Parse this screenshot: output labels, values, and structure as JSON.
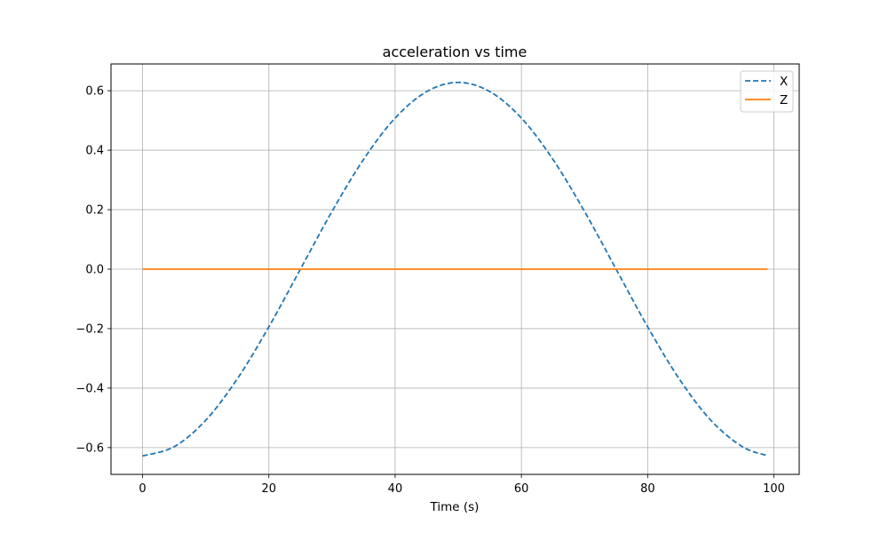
{
  "chart_data": {
    "type": "line",
    "title": "acceleration vs time",
    "xlabel": "Time (s)",
    "ylabel": "",
    "xlim": [
      -5,
      104
    ],
    "ylim": [
      -0.69,
      0.69
    ],
    "xticks": [
      0,
      20,
      40,
      60,
      80,
      100
    ],
    "xtick_labels": [
      "0",
      "20",
      "40",
      "60",
      "80",
      "100"
    ],
    "yticks": [
      -0.6,
      -0.4,
      -0.2,
      0.0,
      0.2,
      0.4,
      0.6
    ],
    "ytick_labels": [
      "−0.6",
      "−0.4",
      "−0.2",
      "0.0",
      "0.2",
      "0.4",
      "0.6"
    ],
    "grid": true,
    "legend_position": "top-right",
    "series": [
      {
        "name": "X",
        "color": "#1f77b4",
        "style": "dashed",
        "x": [
          0,
          5,
          10,
          15,
          20,
          25,
          30,
          35,
          40,
          45,
          50,
          55,
          60,
          65,
          70,
          75,
          80,
          85,
          90,
          95,
          99
        ],
        "y": [
          -0.628,
          -0.597,
          -0.508,
          -0.369,
          -0.194,
          0.0,
          0.194,
          0.369,
          0.508,
          0.597,
          0.628,
          0.597,
          0.508,
          0.369,
          0.194,
          0.0,
          -0.194,
          -0.369,
          -0.508,
          -0.597,
          -0.627
        ]
      },
      {
        "name": "Z",
        "color": "#ff7f0e",
        "style": "solid",
        "x": [
          0,
          99
        ],
        "y": [
          0.0,
          0.0
        ]
      }
    ]
  }
}
